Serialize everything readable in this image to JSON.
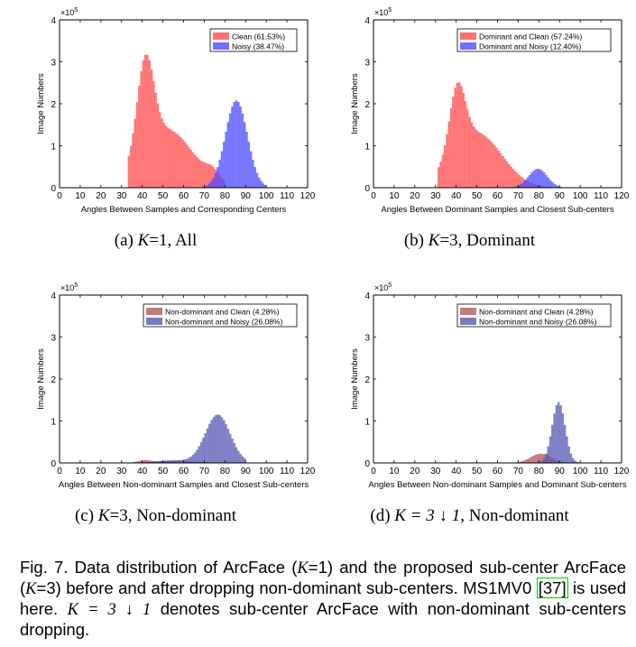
{
  "colors": {
    "clean": "#ff4d4d",
    "noisy": "#4d4dff",
    "nd_clean": "#b35959",
    "nd_noisy": "#5959b3",
    "axis": "#000000"
  },
  "chart_data": [
    {
      "id": "a",
      "type": "bar",
      "xlabel": "Angles Between Samples and Corresponding Centers",
      "ylabel": "Image Numbers",
      "exponent": "×10",
      "exponent_power": "5",
      "xlim": [
        0,
        120
      ],
      "ylim": [
        0,
        4
      ],
      "xticks": [
        "0",
        "10",
        "20",
        "30",
        "40",
        "50",
        "60",
        "70",
        "80",
        "90",
        "100",
        "110",
        "120"
      ],
      "yticks": [
        "0",
        "1",
        "2",
        "3",
        "4"
      ],
      "legend_position": "top-right",
      "caption_prefix": "(a)",
      "caption_var": "K",
      "caption_rest": "=1, All",
      "series": [
        {
          "name": "Clean (61.53%)",
          "color_key": "clean",
          "components": [
            {
              "mu": 41.5,
              "sigma": 4.0,
              "amp": 2.2
            },
            {
              "mu": 52.0,
              "sigma": 12.5,
              "amp": 1.38
            },
            {
              "mu": 74.0,
              "sigma": 3.5,
              "amp": 0.22
            }
          ],
          "range": [
            33,
            80
          ]
        },
        {
          "name": "Noisy (38.47%)",
          "color_key": "noisy",
          "components": [
            {
              "mu": 85.5,
              "sigma": 5.3,
              "amp": 2.08
            }
          ],
          "range": [
            66,
            100
          ]
        }
      ]
    },
    {
      "id": "b",
      "type": "bar",
      "xlabel": "Angles Between Dominant Samples and Closest Sub-centers",
      "ylabel": "Image Numbers",
      "exponent": "×10",
      "exponent_power": "5",
      "xlim": [
        0,
        120
      ],
      "ylim": [
        0,
        4
      ],
      "xticks": [
        "0",
        "10",
        "20",
        "30",
        "40",
        "50",
        "60",
        "70",
        "80",
        "90",
        "100",
        "110",
        "120"
      ],
      "yticks": [
        "0",
        "1",
        "2",
        "3",
        "4"
      ],
      "legend_position": "top-right",
      "caption_prefix": "(b)",
      "caption_var": "K",
      "caption_rest": "=3, Dominant",
      "series": [
        {
          "name": "Dominant and Clean (57.24%)",
          "color_key": "clean",
          "components": [
            {
              "mu": 40.5,
              "sigma": 3.8,
              "amp": 1.55
            },
            {
              "mu": 50.0,
              "sigma": 12.0,
              "amp": 1.3
            }
          ],
          "range": [
            31,
            82
          ]
        },
        {
          "name": "Dominant and Noisy (12.40%)",
          "color_key": "noisy",
          "components": [
            {
              "mu": 79.5,
              "sigma": 4.5,
              "amp": 0.45
            }
          ],
          "range": [
            62,
            91
          ]
        }
      ]
    },
    {
      "id": "c",
      "type": "bar",
      "xlabel": "Angles Between Non-dominant Samples and Closest Sub-centers",
      "ylabel": "Image Numbers",
      "exponent": "×10",
      "exponent_power": "5",
      "xlim": [
        0,
        120
      ],
      "ylim": [
        0,
        4
      ],
      "xticks": [
        "0",
        "10",
        "20",
        "30",
        "40",
        "50",
        "60",
        "70",
        "80",
        "90",
        "100",
        "110",
        "120"
      ],
      "yticks": [
        "0",
        "1",
        "2",
        "3",
        "4"
      ],
      "legend_position": "top-right",
      "caption_prefix": "(c)",
      "caption_var": "K",
      "caption_rest": "=3, Non-dominant",
      "series": [
        {
          "name": "Non-dominant and Clean (4.28%)",
          "color_key": "nd_clean",
          "components": [
            {
              "mu": 41.0,
              "sigma": 3.0,
              "amp": 0.05
            },
            {
              "mu": 56.0,
              "sigma": 10.0,
              "amp": 0.05
            }
          ],
          "range": [
            33,
            80
          ]
        },
        {
          "name": "Non-dominant and Noisy (26.08%)",
          "color_key": "nd_noisy",
          "components": [
            {
              "mu": 76.5,
              "sigma": 6.0,
              "amp": 1.15
            },
            {
              "mu": 55.0,
              "sigma": 9.0,
              "amp": 0.06
            }
          ],
          "range": [
            35,
            90
          ]
        }
      ]
    },
    {
      "id": "d",
      "type": "bar",
      "xlabel": "Angles Between Non-dominant Samples and Dominant Sub-centers",
      "ylabel": "Image Numbers",
      "exponent": "×10",
      "exponent_power": "5",
      "xlim": [
        0,
        120
      ],
      "ylim": [
        0,
        4
      ],
      "xticks": [
        "0",
        "10",
        "20",
        "30",
        "40",
        "50",
        "60",
        "70",
        "80",
        "90",
        "100",
        "110",
        "120"
      ],
      "yticks": [
        "0",
        "1",
        "2",
        "3",
        "4"
      ],
      "legend_position": "top-right",
      "caption_prefix": "(d)",
      "caption_var": "K = 3 ↓ 1",
      "caption_rest": ", Non-dominant",
      "series": [
        {
          "name": "Non-dominant and Clean (4.28%)",
          "color_key": "nd_clean",
          "components": [
            {
              "mu": 81.0,
              "sigma": 5.0,
              "amp": 0.22
            }
          ],
          "range": [
            66,
            92
          ]
        },
        {
          "name": "Non-dominant and Noisy (26.08%)",
          "color_key": "nd_noisy",
          "components": [
            {
              "mu": 89.5,
              "sigma": 3.1,
              "amp": 1.45
            }
          ],
          "range": [
            74,
            101
          ]
        }
      ]
    }
  ],
  "caption": {
    "part1": "Fig. 7. Data distribution of ArcFace (",
    "var1": "K",
    "part2": "=1) and the proposed sub-center ArcFace (",
    "var2": "K",
    "part3": "=3) before and after dropping non-dominant sub-centers. MS1MV0 ",
    "ref": "[37]",
    "part4": " is used here. ",
    "math": "K = 3 ↓ 1",
    "part5": " denotes sub-center ArcFace with non-dominant sub-centers dropping."
  }
}
